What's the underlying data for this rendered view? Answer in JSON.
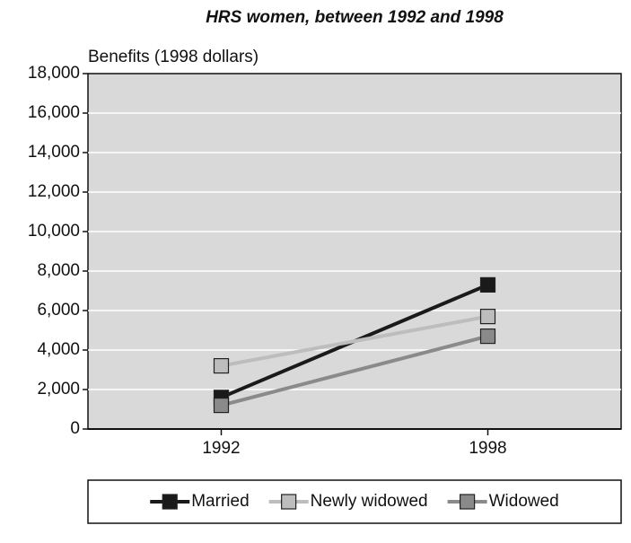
{
  "chart_data": {
    "type": "line",
    "title": "HRS women, between 1992 and 1998",
    "y_label": "Benefits (1998 dollars)",
    "categories": [
      "1992",
      "1998"
    ],
    "series": [
      {
        "name": "Married",
        "color": "#1a1a1a",
        "values": [
          1600,
          7300
        ]
      },
      {
        "name": "Newly widowed",
        "color": "#bdbdbd",
        "values": [
          3200,
          5700
        ]
      },
      {
        "name": "Widowed",
        "color": "#8a8a8a",
        "values": [
          1200,
          4700
        ]
      }
    ],
    "ylim": [
      0,
      18000
    ],
    "yticks": [
      0,
      {
        "value": 2000,
        "label": "2,000"
      },
      {
        "value": 4000,
        "label": "4,000"
      },
      {
        "value": 6000,
        "label": "6,000"
      },
      {
        "value": 8000,
        "label": "8,000"
      },
      {
        "value": 10000,
        "label": "10,000"
      },
      {
        "value": 12000,
        "label": "12,000"
      },
      {
        "value": 14000,
        "label": "14,000"
      },
      {
        "value": 16000,
        "label": "16,000"
      },
      {
        "value": 18000,
        "label": "18,000"
      }
    ],
    "grid": true,
    "legend": "bottom"
  }
}
